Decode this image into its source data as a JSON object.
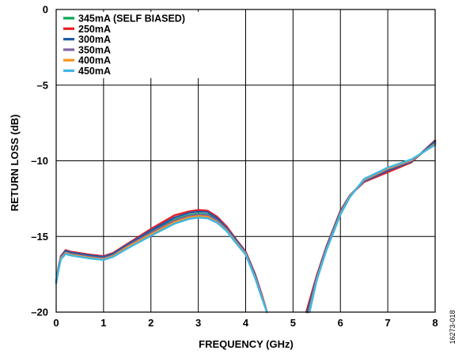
{
  "chart_data": {
    "type": "line",
    "xlabel": "FREQUENCY (GHz)",
    "ylabel": "RETURN LOSS (dB)",
    "xlim": [
      0,
      8
    ],
    "ylim": [
      -20,
      0
    ],
    "xticks": [
      "0",
      "1",
      "2",
      "3",
      "4",
      "5",
      "6",
      "7",
      "8"
    ],
    "yticks": [
      "0",
      "–5",
      "–10",
      "–15",
      "–20"
    ],
    "grid": true,
    "legend_position": "top-left",
    "figure_id": "16273-018",
    "series": [
      {
        "name": "345mA (SELF BIASED)",
        "color": "#00a651",
        "segments": [
          [
            [
              0,
              -18.0
            ],
            [
              0.05,
              -17.1
            ],
            [
              0.1,
              -16.4
            ],
            [
              0.2,
              -16.0
            ],
            [
              0.3,
              -16.1
            ],
            [
              0.5,
              -16.2
            ],
            [
              0.7,
              -16.3
            ],
            [
              1.0,
              -16.4
            ],
            [
              1.2,
              -16.2
            ],
            [
              1.5,
              -15.6
            ],
            [
              2.0,
              -14.7
            ],
            [
              2.5,
              -13.9
            ],
            [
              2.8,
              -13.6
            ],
            [
              3.0,
              -13.5
            ],
            [
              3.2,
              -13.55
            ],
            [
              3.4,
              -13.9
            ],
            [
              3.6,
              -14.5
            ],
            [
              3.8,
              -15.3
            ],
            [
              4.0,
              -16.1
            ],
            [
              4.2,
              -17.6
            ],
            [
              4.35,
              -19.0
            ],
            [
              4.45,
              -20.0
            ]
          ],
          [
            [
              5.32,
              -20.0
            ],
            [
              5.5,
              -17.8
            ],
            [
              5.7,
              -15.8
            ],
            [
              6.0,
              -13.4
            ],
            [
              6.2,
              -12.3
            ],
            [
              6.5,
              -11.3
            ],
            [
              7.0,
              -10.6
            ],
            [
              7.5,
              -10.05
            ],
            [
              8.0,
              -8.8
            ]
          ]
        ]
      },
      {
        "name": "250mA",
        "color": "#ed1c24",
        "segments": [
          [
            [
              0,
              -18.0
            ],
            [
              0.05,
              -17.0
            ],
            [
              0.1,
              -16.3
            ],
            [
              0.2,
              -15.9
            ],
            [
              0.3,
              -16.0
            ],
            [
              0.5,
              -16.1
            ],
            [
              0.7,
              -16.2
            ],
            [
              1.0,
              -16.3
            ],
            [
              1.2,
              -16.1
            ],
            [
              1.5,
              -15.5
            ],
            [
              2.0,
              -14.5
            ],
            [
              2.5,
              -13.6
            ],
            [
              2.8,
              -13.35
            ],
            [
              3.0,
              -13.25
            ],
            [
              3.2,
              -13.3
            ],
            [
              3.4,
              -13.7
            ],
            [
              3.6,
              -14.35
            ],
            [
              3.8,
              -15.2
            ],
            [
              4.0,
              -16.0
            ],
            [
              4.2,
              -17.5
            ],
            [
              4.35,
              -18.95
            ],
            [
              4.45,
              -20.0
            ]
          ],
          [
            [
              5.28,
              -20.0
            ],
            [
              5.5,
              -17.6
            ],
            [
              5.7,
              -15.7
            ],
            [
              6.0,
              -13.3
            ],
            [
              6.2,
              -12.3
            ],
            [
              6.5,
              -11.4
            ],
            [
              7.0,
              -10.75
            ],
            [
              7.5,
              -10.1
            ],
            [
              8.0,
              -8.65
            ]
          ]
        ]
      },
      {
        "name": "300mA",
        "color": "#1f5ba6",
        "segments": [
          [
            [
              0,
              -18.0
            ],
            [
              0.05,
              -17.05
            ],
            [
              0.1,
              -16.35
            ],
            [
              0.2,
              -15.95
            ],
            [
              0.3,
              -16.05
            ],
            [
              0.5,
              -16.15
            ],
            [
              0.7,
              -16.25
            ],
            [
              1.0,
              -16.35
            ],
            [
              1.2,
              -16.15
            ],
            [
              1.5,
              -15.55
            ],
            [
              2.0,
              -14.6
            ],
            [
              2.5,
              -13.75
            ],
            [
              2.8,
              -13.45
            ],
            [
              3.0,
              -13.35
            ],
            [
              3.2,
              -13.4
            ],
            [
              3.4,
              -13.8
            ],
            [
              3.6,
              -14.45
            ],
            [
              3.8,
              -15.25
            ],
            [
              4.0,
              -16.05
            ],
            [
              4.2,
              -17.55
            ],
            [
              4.35,
              -19.0
            ],
            [
              4.45,
              -20.0
            ]
          ],
          [
            [
              5.3,
              -20.0
            ],
            [
              5.5,
              -17.7
            ],
            [
              5.7,
              -15.75
            ],
            [
              6.0,
              -13.35
            ],
            [
              6.2,
              -12.3
            ],
            [
              6.5,
              -11.35
            ],
            [
              7.0,
              -10.65
            ],
            [
              7.5,
              -10.05
            ],
            [
              8.0,
              -8.7
            ]
          ]
        ]
      },
      {
        "name": "350mA",
        "color": "#8064a2",
        "segments": [
          [
            [
              0,
              -18.0
            ],
            [
              0.05,
              -17.1
            ],
            [
              0.1,
              -16.4
            ],
            [
              0.2,
              -16.05
            ],
            [
              0.3,
              -16.15
            ],
            [
              0.5,
              -16.25
            ],
            [
              0.7,
              -16.35
            ],
            [
              1.0,
              -16.45
            ],
            [
              1.2,
              -16.25
            ],
            [
              1.5,
              -15.65
            ],
            [
              2.0,
              -14.75
            ],
            [
              2.5,
              -13.95
            ],
            [
              2.8,
              -13.65
            ],
            [
              3.0,
              -13.55
            ],
            [
              3.2,
              -13.6
            ],
            [
              3.4,
              -13.95
            ],
            [
              3.6,
              -14.55
            ],
            [
              3.8,
              -15.35
            ],
            [
              4.0,
              -16.1
            ],
            [
              4.2,
              -17.65
            ],
            [
              4.35,
              -19.05
            ],
            [
              4.45,
              -20.0
            ]
          ],
          [
            [
              5.33,
              -20.0
            ],
            [
              5.5,
              -17.8
            ],
            [
              5.7,
              -15.85
            ],
            [
              6.0,
              -13.45
            ],
            [
              6.2,
              -12.35
            ],
            [
              6.5,
              -11.3
            ],
            [
              7.0,
              -10.55
            ],
            [
              7.5,
              -10.0
            ],
            [
              8.0,
              -8.85
            ]
          ]
        ]
      },
      {
        "name": "400mA",
        "color": "#f7941d",
        "segments": [
          [
            [
              0,
              -18.0
            ],
            [
              0.05,
              -17.15
            ],
            [
              0.1,
              -16.45
            ],
            [
              0.2,
              -16.1
            ],
            [
              0.3,
              -16.2
            ],
            [
              0.5,
              -16.3
            ],
            [
              0.7,
              -16.4
            ],
            [
              1.0,
              -16.5
            ],
            [
              1.2,
              -16.3
            ],
            [
              1.5,
              -15.7
            ],
            [
              2.0,
              -14.85
            ],
            [
              2.5,
              -14.05
            ],
            [
              2.8,
              -13.75
            ],
            [
              3.0,
              -13.65
            ],
            [
              3.2,
              -13.7
            ],
            [
              3.4,
              -14.05
            ],
            [
              3.6,
              -14.6
            ],
            [
              3.8,
              -15.4
            ],
            [
              4.0,
              -16.15
            ],
            [
              4.2,
              -17.7
            ],
            [
              4.35,
              -19.1
            ],
            [
              4.45,
              -20.0
            ]
          ],
          [
            [
              5.34,
              -20.0
            ],
            [
              5.5,
              -17.85
            ],
            [
              5.7,
              -15.9
            ],
            [
              6.0,
              -13.5
            ],
            [
              6.2,
              -12.35
            ],
            [
              6.5,
              -11.25
            ],
            [
              7.0,
              -10.5
            ],
            [
              7.5,
              -9.95
            ],
            [
              8.0,
              -8.9
            ]
          ]
        ]
      },
      {
        "name": "450mA",
        "color": "#3fb6e5",
        "segments": [
          [
            [
              0,
              -18.1
            ],
            [
              0.05,
              -17.2
            ],
            [
              0.1,
              -16.5
            ],
            [
              0.2,
              -16.15
            ],
            [
              0.3,
              -16.25
            ],
            [
              0.5,
              -16.35
            ],
            [
              0.7,
              -16.45
            ],
            [
              1.0,
              -16.55
            ],
            [
              1.2,
              -16.35
            ],
            [
              1.5,
              -15.8
            ],
            [
              2.0,
              -14.95
            ],
            [
              2.5,
              -14.15
            ],
            [
              2.8,
              -13.85
            ],
            [
              3.0,
              -13.75
            ],
            [
              3.2,
              -13.8
            ],
            [
              3.4,
              -14.1
            ],
            [
              3.6,
              -14.65
            ],
            [
              3.8,
              -15.45
            ],
            [
              4.0,
              -16.2
            ],
            [
              4.2,
              -17.75
            ],
            [
              4.35,
              -19.15
            ],
            [
              4.45,
              -20.0
            ]
          ],
          [
            [
              5.35,
              -20.0
            ],
            [
              5.5,
              -17.9
            ],
            [
              5.7,
              -15.95
            ],
            [
              6.0,
              -13.55
            ],
            [
              6.2,
              -12.4
            ],
            [
              6.5,
              -11.2
            ],
            [
              7.0,
              -10.45
            ],
            [
              7.5,
              -9.9
            ],
            [
              8.0,
              -8.95
            ]
          ]
        ]
      }
    ]
  }
}
